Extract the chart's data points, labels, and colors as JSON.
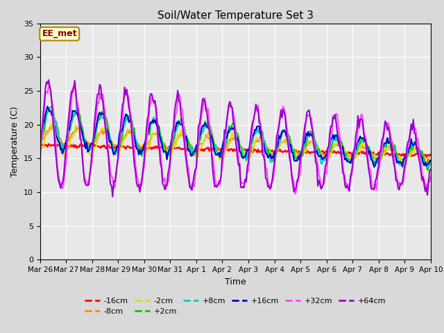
{
  "title": "Soil/Water Temperature Set 3",
  "xlabel": "Time",
  "ylabel": "Temperature (C)",
  "ylim": [
    0,
    35
  ],
  "yticks": [
    0,
    5,
    10,
    15,
    20,
    25,
    30,
    35
  ],
  "background_color": "#e8e8e8",
  "fig_bg_color": "#d9d9d9",
  "annotation_text": "EE_met",
  "annotation_bg": "#ffffcc",
  "annotation_border": "#aa8800",
  "annotation_text_color": "#880000",
  "series_order": [
    "-16cm",
    "-8cm",
    "-2cm",
    "+2cm",
    "+8cm",
    "+16cm",
    "+32cm",
    "+64cm"
  ],
  "series": {
    "-16cm": {
      "color": "#ff0000",
      "lw": 1.8
    },
    "-8cm": {
      "color": "#ff8800",
      "lw": 1.5
    },
    "-2cm": {
      "color": "#dddd00",
      "lw": 1.5
    },
    "+2cm": {
      "color": "#00cc00",
      "lw": 1.5
    },
    "+8cm": {
      "color": "#00cccc",
      "lw": 1.5
    },
    "+16cm": {
      "color": "#0000cc",
      "lw": 1.5
    },
    "+32cm": {
      "color": "#ff44ff",
      "lw": 1.5
    },
    "+64cm": {
      "color": "#9900cc",
      "lw": 1.5
    }
  },
  "x_tick_labels": [
    "Mar 26",
    "Mar 27",
    "Mar 28",
    "Mar 29",
    "Mar 30",
    "Mar 31",
    "Apr 1",
    "Apr 2",
    "Apr 3",
    "Apr 4",
    "Apr 5",
    "Apr 6",
    "Apr 7",
    "Apr 8",
    "Apr 9",
    "Apr 10"
  ],
  "x_tick_positions": [
    0,
    1,
    2,
    3,
    4,
    5,
    6,
    7,
    8,
    9,
    10,
    11,
    12,
    13,
    14,
    15
  ],
  "legend_row1": [
    "-16cm",
    "-8cm",
    "-2cm",
    "+2cm",
    "+8cm",
    "+16cm"
  ],
  "legend_row2": [
    "+32cm",
    "+64cm"
  ]
}
